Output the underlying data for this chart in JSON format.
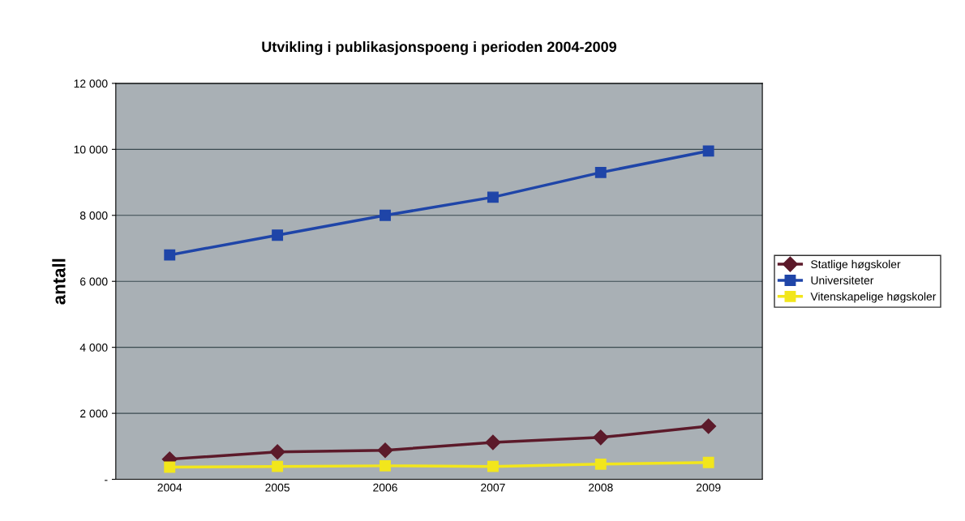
{
  "chart_data": {
    "type": "line",
    "title": "Utvikling i publikasjonspoeng i perioden 2004-2009",
    "ylabel": "antall",
    "categories": [
      "2004",
      "2005",
      "2006",
      "2007",
      "2008",
      "2009"
    ],
    "series": [
      {
        "name": "Statlige høgskoler",
        "color": "#5c1a2a",
        "marker": "diamond",
        "values": [
          610,
          830,
          880,
          1120,
          1270,
          1610
        ]
      },
      {
        "name": "Universiteter",
        "color": "#1f45a8",
        "marker": "square",
        "values": [
          6800,
          7400,
          8000,
          8550,
          9300,
          9950
        ]
      },
      {
        "name": "Vitenskapelige høgskoler",
        "color": "#f2e61c",
        "marker": "square",
        "values": [
          370,
          390,
          410,
          390,
          460,
          510
        ]
      }
    ],
    "ylim": [
      0,
      12000
    ],
    "yticks": [
      {
        "value": 0,
        "label": "-"
      },
      {
        "value": 2000,
        "label": "2 000"
      },
      {
        "value": 4000,
        "label": "4 000"
      },
      {
        "value": 6000,
        "label": "6 000"
      },
      {
        "value": 8000,
        "label": "8 000"
      },
      {
        "value": 10000,
        "label": "10 000"
      },
      {
        "value": 12000,
        "label": "12 000"
      }
    ],
    "grid": "y",
    "legend": "right"
  }
}
